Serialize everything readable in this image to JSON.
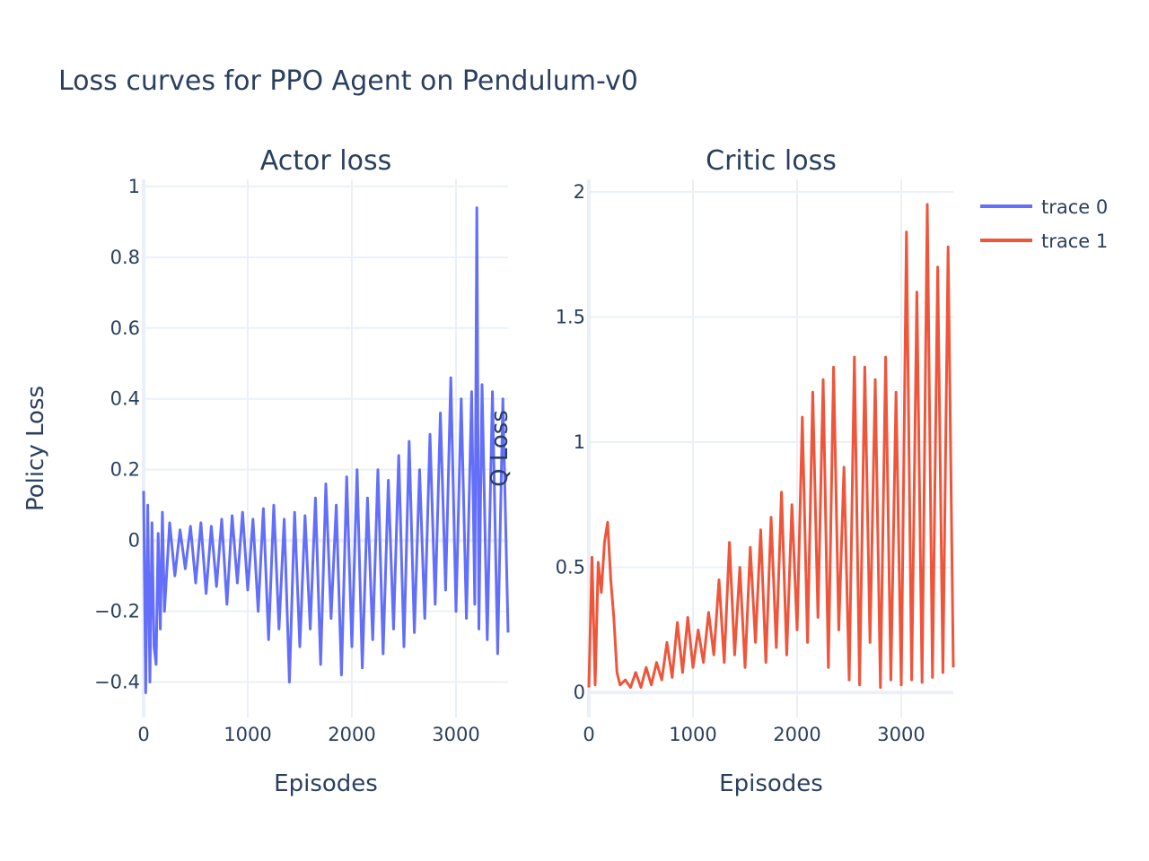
{
  "figure": {
    "title": "Loss curves for PPO Agent on Pendulum-v0"
  },
  "legend": [
    {
      "name": "trace 0",
      "color": "#636efa"
    },
    {
      "name": "trace 1",
      "color": "#ef553b"
    }
  ],
  "chart_data": [
    {
      "type": "line",
      "title": "Actor loss",
      "xlabel": "Episodes",
      "ylabel": "Policy Loss",
      "xlim": [
        0,
        3500
      ],
      "ylim": [
        -0.5,
        1.02
      ],
      "xticks": [
        0,
        1000,
        2000,
        3000
      ],
      "xtick_labels": [
        "0",
        "1000",
        "2000",
        "3000"
      ],
      "yticks": [
        -0.4,
        -0.2,
        0,
        0.2,
        0.4,
        0.6,
        0.8,
        1
      ],
      "ytick_labels": [
        "−0.4",
        "−0.2",
        "0",
        "0.2",
        "0.4",
        "0.6",
        "0.8",
        "1"
      ],
      "grid": true,
      "series": [
        {
          "name": "trace 0",
          "color": "#636efa",
          "x": [
            0,
            20,
            40,
            60,
            80,
            100,
            120,
            140,
            160,
            180,
            200,
            250,
            300,
            350,
            400,
            450,
            500,
            550,
            600,
            650,
            700,
            750,
            800,
            850,
            900,
            950,
            1000,
            1050,
            1100,
            1150,
            1200,
            1250,
            1300,
            1350,
            1400,
            1450,
            1500,
            1550,
            1600,
            1650,
            1700,
            1750,
            1800,
            1850,
            1900,
            1950,
            2000,
            2050,
            2100,
            2150,
            2200,
            2250,
            2300,
            2350,
            2400,
            2450,
            2500,
            2550,
            2600,
            2650,
            2700,
            2750,
            2800,
            2850,
            2900,
            2950,
            3000,
            3050,
            3100,
            3150,
            3180,
            3200,
            3220,
            3250,
            3300,
            3350,
            3400,
            3450,
            3500
          ],
          "y": [
            0.14,
            -0.43,
            0.1,
            -0.4,
            0.05,
            -0.3,
            -0.35,
            0.02,
            -0.25,
            0.08,
            -0.2,
            0.05,
            -0.1,
            0.03,
            -0.08,
            0.04,
            -0.12,
            0.05,
            -0.15,
            0.04,
            -0.13,
            0.06,
            -0.18,
            0.07,
            -0.12,
            0.08,
            -0.14,
            0.06,
            -0.2,
            0.09,
            -0.28,
            0.1,
            -0.25,
            0.06,
            -0.4,
            0.08,
            -0.3,
            0.07,
            -0.25,
            0.12,
            -0.35,
            0.16,
            -0.22,
            0.1,
            -0.38,
            0.18,
            -0.3,
            0.2,
            -0.36,
            0.12,
            -0.28,
            0.2,
            -0.32,
            0.17,
            -0.25,
            0.24,
            -0.3,
            0.28,
            -0.26,
            0.2,
            -0.22,
            0.3,
            -0.18,
            0.36,
            -0.14,
            0.46,
            -0.2,
            0.4,
            -0.22,
            0.42,
            -0.18,
            0.94,
            -0.25,
            0.44,
            -0.28,
            0.42,
            -0.32,
            0.4,
            -0.26
          ]
        }
      ]
    },
    {
      "type": "line",
      "title": "Critic loss",
      "xlabel": "Episodes",
      "ylabel": "Q Loss",
      "xlim": [
        0,
        3500
      ],
      "ylim": [
        -0.1,
        2.05
      ],
      "xticks": [
        0,
        1000,
        2000,
        3000
      ],
      "xtick_labels": [
        "0",
        "1000",
        "2000",
        "3000"
      ],
      "yticks": [
        0,
        0.5,
        1,
        1.5,
        2
      ],
      "ytick_labels": [
        "0",
        "0.5",
        "1",
        "1.5",
        "2"
      ],
      "grid": true,
      "series": [
        {
          "name": "trace 1",
          "color": "#ef553b",
          "x": [
            0,
            30,
            60,
            90,
            120,
            150,
            180,
            210,
            240,
            270,
            300,
            350,
            400,
            450,
            500,
            550,
            600,
            650,
            700,
            750,
            800,
            850,
            900,
            950,
            1000,
            1050,
            1100,
            1150,
            1200,
            1250,
            1300,
            1350,
            1400,
            1450,
            1500,
            1550,
            1600,
            1650,
            1700,
            1750,
            1800,
            1850,
            1900,
            1950,
            2000,
            2050,
            2100,
            2150,
            2200,
            2250,
            2300,
            2350,
            2400,
            2450,
            2500,
            2550,
            2600,
            2650,
            2700,
            2750,
            2800,
            2850,
            2900,
            2950,
            3000,
            3050,
            3100,
            3150,
            3200,
            3250,
            3300,
            3350,
            3400,
            3450,
            3500
          ],
          "y": [
            0.02,
            0.54,
            0.03,
            0.52,
            0.4,
            0.6,
            0.68,
            0.45,
            0.3,
            0.08,
            0.03,
            0.05,
            0.02,
            0.08,
            0.02,
            0.1,
            0.03,
            0.12,
            0.05,
            0.2,
            0.06,
            0.28,
            0.08,
            0.3,
            0.1,
            0.25,
            0.12,
            0.32,
            0.15,
            0.45,
            0.12,
            0.6,
            0.15,
            0.5,
            0.1,
            0.58,
            0.2,
            0.65,
            0.12,
            0.7,
            0.18,
            0.8,
            0.15,
            0.75,
            0.25,
            1.1,
            0.2,
            1.2,
            0.3,
            1.25,
            0.1,
            1.3,
            0.25,
            0.9,
            0.05,
            1.34,
            0.03,
            1.3,
            0.2,
            1.25,
            0.02,
            1.34,
            0.05,
            1.2,
            0.03,
            1.84,
            0.05,
            1.6,
            0.04,
            1.95,
            0.06,
            1.7,
            0.08,
            1.78,
            0.1
          ]
        }
      ]
    }
  ]
}
